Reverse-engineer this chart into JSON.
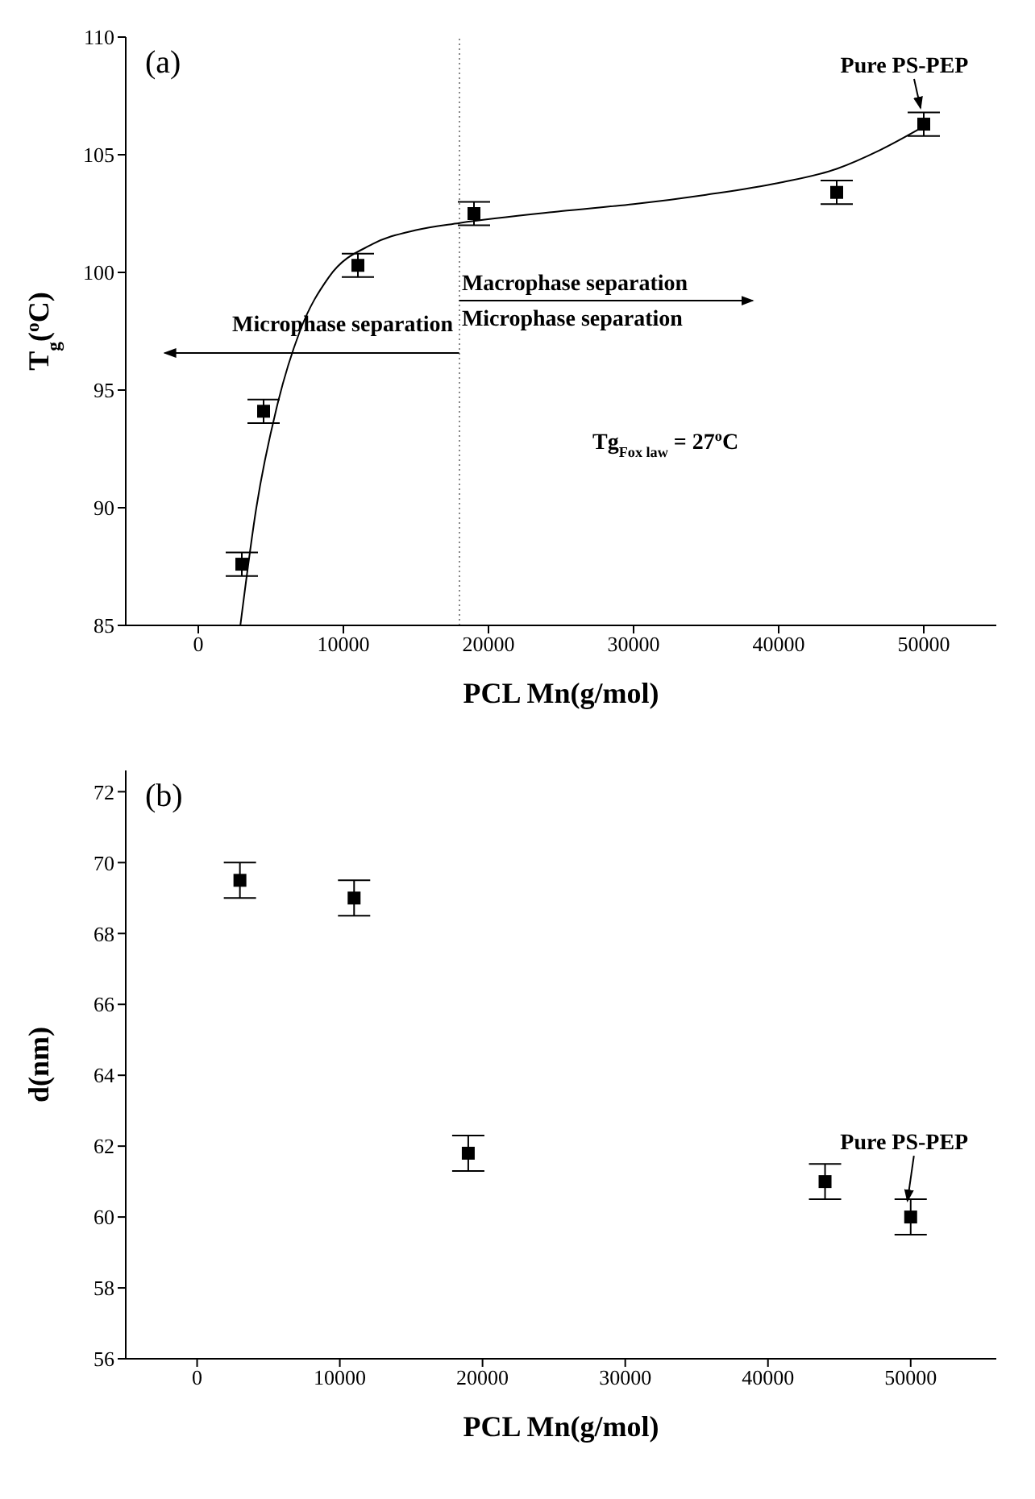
{
  "chart_data": [
    {
      "type": "scatter",
      "title": "(a)",
      "xlabel": "PCL Mn(g/mol)",
      "ylabel": "T$_{g}$($^{o}$C)",
      "xlim": [
        -5000,
        55000
      ],
      "xticks": [
        0,
        10000,
        20000,
        30000,
        40000,
        50000
      ],
      "ylim": [
        85,
        110
      ],
      "yticks": [
        85,
        90,
        95,
        100,
        105,
        110
      ],
      "marker": "square",
      "series": [
        {
          "type": "scatter",
          "color": "#000000",
          "x": [
            3000,
            4500,
            11000,
            19000,
            44000,
            50000
          ],
          "values": [
            87.6,
            94.1,
            100.3,
            102.5,
            103.4,
            106.3
          ],
          "errors": [
            0.5,
            0.5,
            0.5,
            0.5,
            0.5,
            0.5
          ]
        },
        {
          "type": "line",
          "color": "#000000",
          "marker": "none",
          "line_style": "solid",
          "x": [
            2900,
            4000,
            5500,
            7000,
            9000,
            12000,
            15000,
            18000,
            25000,
            30000,
            35000,
            40000,
            44000,
            47000,
            50000
          ],
          "values": [
            85,
            90,
            94.5,
            97.5,
            99.8,
            101.2,
            101.8,
            102.1,
            102.6,
            102.9,
            103.3,
            103.8,
            104.4,
            105.2,
            106.2
          ]
        }
      ],
      "ref_lines": [
        {
          "axis": "x",
          "value": 18000,
          "color": "#888888",
          "line_style": "dotted"
        }
      ],
      "annotations": [
        "Microphase separation",
        "Macrophase separation",
        "Microphase separation",
        "Tg$_{Fox law}$ = 27$^{o}$C",
        {
          "text": "Pure PS-PEP",
          "x": 50000,
          "y": 106.3
        }
      ]
    },
    {
      "type": "scatter",
      "title": "(b)",
      "xlabel": "PCL Mn(g/mol)",
      "ylabel": "d(nm)",
      "xlim": [
        -5000,
        56000
      ],
      "xticks": [
        0,
        10000,
        20000,
        30000,
        40000,
        50000
      ],
      "ylim": [
        56,
        72.6
      ],
      "yticks": [
        56,
        58,
        60,
        62,
        64,
        66,
        68,
        70,
        72
      ],
      "marker": "square",
      "series": [
        {
          "type": "scatter",
          "color": "#000000",
          "x": [
            3000,
            11000,
            19000,
            44000,
            50000
          ],
          "values": [
            69.5,
            69,
            61.8,
            61,
            60
          ],
          "errors": [
            0.5,
            0.5,
            0.5,
            0.5,
            0.5
          ]
        }
      ],
      "annotations": [
        {
          "text": "Pure PS-PEP",
          "x": 50000,
          "y": 60
        }
      ]
    }
  ]
}
